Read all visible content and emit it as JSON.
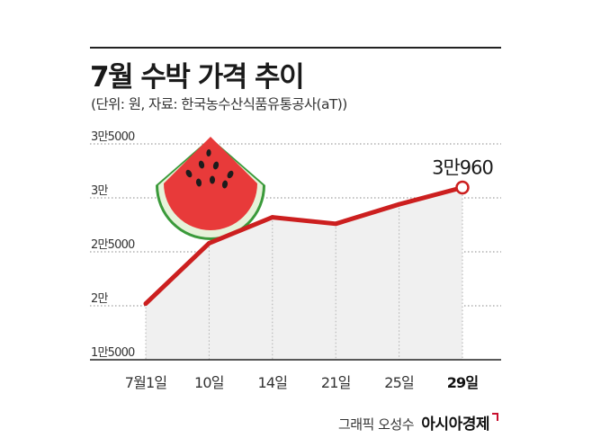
{
  "title": "7월 수박 가격 추이",
  "subtitle": "(단위: 원, 자료: 한국농수산식품유통공사(aT))",
  "credit": {
    "graphic": "그래픽 오성수",
    "publisher": "아시아경제"
  },
  "colors": {
    "line": "#cc1f1f",
    "area": "#f0f0f0",
    "grid": "#888888",
    "axis": "#222222",
    "watermelon_flesh": "#e83a3a",
    "watermelon_rind": "#3a9a3a"
  },
  "chart_data": {
    "type": "area",
    "x": [
      "7월1일",
      "10일",
      "14일",
      "21일",
      "25일",
      "29일"
    ],
    "series": [
      {
        "values": [
          20200,
          25800,
          28200,
          27600,
          29400,
          30960
        ]
      }
    ],
    "ylim": [
      15000,
      35000
    ],
    "yticks": [
      {
        "value": 35000,
        "label": "3만5000"
      },
      {
        "value": 30000,
        "label": "3만"
      },
      {
        "value": 25000,
        "label": "2만5000"
      },
      {
        "value": 20000,
        "label": "2만"
      },
      {
        "value": 15000,
        "label": "1만5000"
      }
    ],
    "annotation": {
      "index": 5,
      "label": "3만960"
    },
    "grid": true,
    "decoration": "watermelon-icon"
  }
}
